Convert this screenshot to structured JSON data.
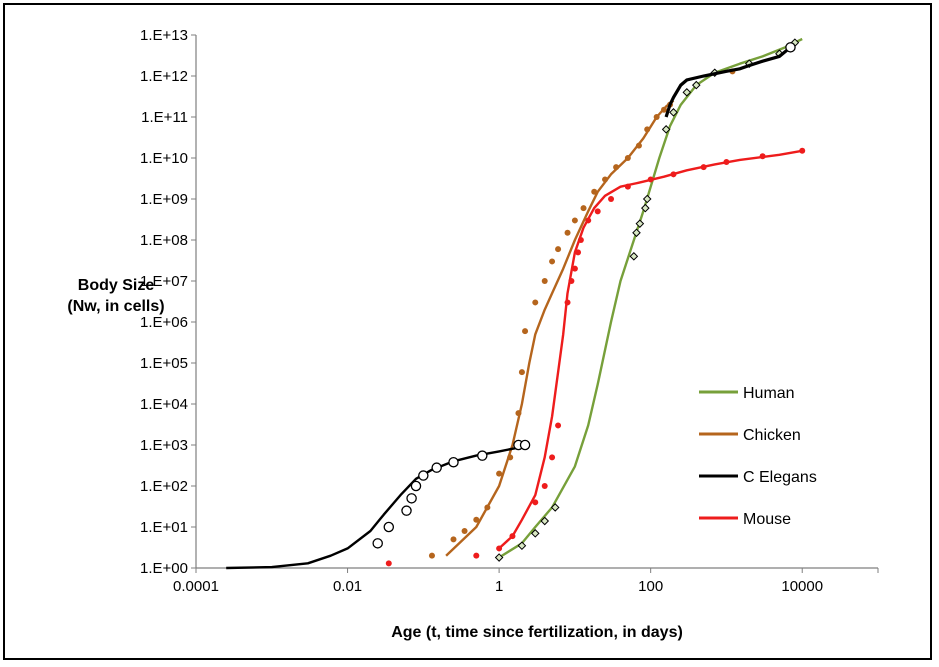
{
  "chart_data": {
    "type": "scatter",
    "title": "",
    "xlabel": "Age (t, time since fertilization, in days)",
    "ylabel_lines": [
      "Body Size",
      "(Nw, in cells)"
    ],
    "xscale": "log",
    "yscale": "log",
    "xlim": [
      0.0001,
      100000
    ],
    "ylim": [
      1,
      10000000000000.0
    ],
    "x_ticks": [
      {
        "value": 0.0001,
        "label": "0.0001"
      },
      {
        "value": 0.01,
        "label": "0.01"
      },
      {
        "value": 1,
        "label": "1"
      },
      {
        "value": 100,
        "label": "100"
      },
      {
        "value": 10000,
        "label": "10000"
      }
    ],
    "y_ticks": [
      {
        "value": 1,
        "label": "1.E+00"
      },
      {
        "value": 10,
        "label": "1.E+01"
      },
      {
        "value": 100,
        "label": "1.E+02"
      },
      {
        "value": 1000,
        "label": "1.E+03"
      },
      {
        "value": 10000,
        "label": "1.E+04"
      },
      {
        "value": 100000,
        "label": "1.E+05"
      },
      {
        "value": 1000000,
        "label": "1.E+06"
      },
      {
        "value": 10000000,
        "label": "1.E+07"
      },
      {
        "value": 100000000,
        "label": "1.E+08"
      },
      {
        "value": 1000000000,
        "label": "1.E+09"
      },
      {
        "value": 10000000000,
        "label": "1.E+10"
      },
      {
        "value": 100000000000,
        "label": "1.E+11"
      },
      {
        "value": 1000000000000,
        "label": "1.E+12"
      },
      {
        "value": 10000000000000,
        "label": "1.E+13"
      }
    ],
    "grid": false,
    "legend_position": "right",
    "series": [
      {
        "name": "Human",
        "color": "#77a03a",
        "line": [
          [
            1,
            1.8
          ],
          [
            2,
            4
          ],
          [
            3,
            10
          ],
          [
            5,
            30
          ],
          [
            10,
            300
          ],
          [
            15,
            3000.0
          ],
          [
            20,
            30000.0
          ],
          [
            30,
            1000000.0
          ],
          [
            40,
            10000000.0
          ],
          [
            60,
            100000000.0
          ],
          [
            80,
            500000000.0
          ],
          [
            100,
            2000000000.0
          ],
          [
            130,
            10000000000.0
          ],
          [
            180,
            60000000000.0
          ],
          [
            250,
            200000000000.0
          ],
          [
            400,
            600000000000.0
          ],
          [
            700,
            1200000000000.0
          ],
          [
            1500,
            2000000000000.0
          ],
          [
            3000,
            3000000000000.0
          ],
          [
            6000,
            5000000000000.0
          ],
          [
            10000,
            8000000000000.0
          ]
        ],
        "points": [
          [
            1,
            1.8
          ],
          [
            2,
            3.5
          ],
          [
            3,
            7
          ],
          [
            4,
            14
          ],
          [
            5.5,
            30
          ],
          [
            60,
            40000000.0
          ],
          [
            65,
            150000000.0
          ],
          [
            72,
            250000000.0
          ],
          [
            85,
            600000000.0
          ],
          [
            90,
            1000000000.0
          ],
          [
            160,
            50000000000.0
          ],
          [
            200,
            130000000000.0
          ],
          [
            300,
            400000000000.0
          ],
          [
            400,
            600000000000.0
          ],
          [
            700,
            1200000000000.0
          ],
          [
            2000,
            2000000000000.0
          ],
          [
            5000,
            3500000000000.0
          ],
          [
            8000,
            6500000000000.0
          ]
        ],
        "marker": "diamond"
      },
      {
        "name": "Chicken",
        "color": "#b5651d",
        "line": [
          [
            0.2,
            2
          ],
          [
            0.5,
            10
          ],
          [
            1,
            100
          ],
          [
            1.5,
            1000.0
          ],
          [
            2,
            10000.0
          ],
          [
            2.5,
            100000.0
          ],
          [
            3,
            500000.0
          ],
          [
            4,
            2000000.0
          ],
          [
            5,
            5000000.0
          ],
          [
            7,
            20000000.0
          ],
          [
            10,
            100000000.0
          ],
          [
            15,
            500000000.0
          ],
          [
            20,
            1500000000.0
          ],
          [
            30,
            4000000000.0
          ],
          [
            50,
            10000000000.0
          ],
          [
            80,
            30000000000.0
          ],
          [
            120,
            100000000000.0
          ],
          [
            160,
            180000000000.0
          ],
          [
            200,
            250000000000.0
          ]
        ],
        "points": [
          [
            0.13,
            2
          ],
          [
            0.25,
            5
          ],
          [
            0.35,
            8
          ],
          [
            0.5,
            15
          ],
          [
            0.7,
            30
          ],
          [
            1,
            200
          ],
          [
            1.4,
            500
          ],
          [
            1.8,
            6000.0
          ],
          [
            2,
            60000.0
          ],
          [
            2.2,
            600000.0
          ],
          [
            3,
            3000000.0
          ],
          [
            4,
            10000000.0
          ],
          [
            5,
            30000000.0
          ],
          [
            6,
            60000000.0
          ],
          [
            8,
            150000000.0
          ],
          [
            10,
            300000000.0
          ],
          [
            13,
            600000000.0
          ],
          [
            18,
            1500000000.0
          ],
          [
            25,
            3000000000.0
          ],
          [
            35,
            6000000000.0
          ],
          [
            50,
            10000000000.0
          ],
          [
            70,
            20000000000.0
          ],
          [
            90,
            50000000000.0
          ],
          [
            120,
            100000000000.0
          ],
          [
            150,
            150000000000.0
          ],
          [
            180,
            200000000000.0
          ],
          [
            1200,
            1300000000000.0
          ]
        ],
        "marker": "dot"
      },
      {
        "name": "C Elegans",
        "color": "#000000",
        "line": [
          [
            0.00025,
            1
          ],
          [
            0.001,
            1.05
          ],
          [
            0.003,
            1.3
          ],
          [
            0.006,
            2
          ],
          [
            0.01,
            3
          ],
          [
            0.02,
            8
          ],
          [
            0.03,
            20
          ],
          [
            0.05,
            60
          ],
          [
            0.08,
            150
          ],
          [
            0.13,
            250
          ],
          [
            0.25,
            400
          ],
          [
            0.5,
            550
          ],
          [
            1,
            700
          ],
          [
            2,
            900
          ]
        ],
        "points": [
          [
            0.025,
            4
          ],
          [
            0.035,
            10
          ],
          [
            0.06,
            25
          ],
          [
            0.07,
            50
          ],
          [
            0.08,
            100
          ],
          [
            0.1,
            180
          ],
          [
            0.15,
            280
          ],
          [
            0.25,
            380
          ],
          [
            0.6,
            550
          ],
          [
            1.8,
            1000
          ],
          [
            2.2,
            1000
          ]
        ],
        "marker": "hollow-circle",
        "adult_points": [
          [
            160,
            100000000000.0
          ],
          [
            180,
            200000000000.0
          ],
          [
            200,
            300000000000.0
          ],
          [
            250,
            600000000000.0
          ],
          [
            300,
            800000000000.0
          ],
          [
            500,
            1000000000000.0
          ],
          [
            1000,
            1300000000000.0
          ],
          [
            1500,
            1500000000000.0
          ],
          [
            2000,
            1800000000000.0
          ],
          [
            3000,
            2300000000000.0
          ],
          [
            5000,
            3000000000000.0
          ],
          [
            7000,
            5000000000000.0
          ]
        ]
      },
      {
        "name": "Mouse",
        "color": "#ee1c1c",
        "line": [
          [
            1,
            3
          ],
          [
            1.5,
            6
          ],
          [
            2,
            15
          ],
          [
            3,
            60
          ],
          [
            4,
            500
          ],
          [
            5,
            5000.0
          ],
          [
            6,
            60000.0
          ],
          [
            7,
            500000.0
          ],
          [
            8,
            5000000.0
          ],
          [
            10,
            50000000.0
          ],
          [
            13,
            200000000.0
          ],
          [
            18,
            600000000.0
          ],
          [
            25,
            1200000000.0
          ],
          [
            40,
            2000000000.0
          ],
          [
            70,
            2500000000.0
          ],
          [
            150,
            3500000000.0
          ],
          [
            300,
            5000000000.0
          ],
          [
            700,
            7000000000.0
          ],
          [
            1500,
            9000000000.0
          ],
          [
            5000,
            12000000000.0
          ],
          [
            10000,
            15000000000.0
          ]
        ],
        "points": [
          [
            0.035,
            1.3
          ],
          [
            0.5,
            2
          ],
          [
            1,
            3
          ],
          [
            1.5,
            6
          ],
          [
            3,
            40
          ],
          [
            4,
            100
          ],
          [
            5,
            500
          ],
          [
            6,
            3000.0
          ],
          [
            8,
            3000000.0
          ],
          [
            9,
            10000000.0
          ],
          [
            10,
            20000000.0
          ],
          [
            11,
            50000000.0
          ],
          [
            12,
            100000000.0
          ],
          [
            15,
            300000000.0
          ],
          [
            20,
            500000000.0
          ],
          [
            30,
            1000000000.0
          ],
          [
            50,
            2000000000.0
          ],
          [
            100,
            3000000000.0
          ],
          [
            200,
            4000000000.0
          ],
          [
            500,
            6000000000.0
          ],
          [
            1000,
            8000000000.0
          ],
          [
            3000,
            11000000000.0
          ],
          [
            10000,
            15000000000.0
          ]
        ],
        "marker": "dot"
      }
    ],
    "legend": [
      {
        "label": "Human",
        "color": "#77a03a"
      },
      {
        "label": "Chicken",
        "color": "#b5651d"
      },
      {
        "label": "C Elegans",
        "color": "#000000"
      },
      {
        "label": "Mouse",
        "color": "#ee1c1c"
      }
    ]
  }
}
